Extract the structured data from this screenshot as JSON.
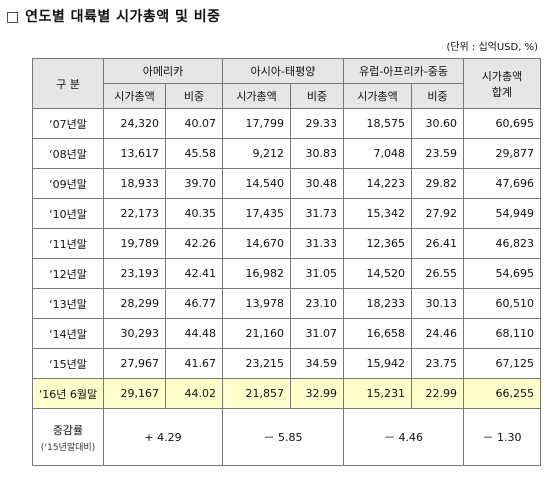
{
  "header": {
    "title": "□ 연도별 대륙별 시가총액 및 비중",
    "unit": "(단위 : 십억USD, %)"
  },
  "table": {
    "label_header": "구 분",
    "groups": [
      "아메리카",
      "아시아-태평양",
      "유럽-아프리카-중동"
    ],
    "total_header": [
      "시가총액",
      "합계"
    ],
    "subheaders": [
      "시가총액",
      "비중",
      "시가총액",
      "비중",
      "시가총액",
      "비중"
    ],
    "rows": [
      [
        "‘07년말",
        "24,320",
        "40.07",
        "17,799",
        "29.33",
        "18,575",
        "30.60",
        "60,695"
      ],
      [
        "‘08년말",
        "13,617",
        "45.58",
        "9,212",
        "30.83",
        "7,048",
        "23.59",
        "29,877"
      ],
      [
        "‘09년말",
        "18,933",
        "39.70",
        "14,540",
        "30.48",
        "14,223",
        "29.82",
        "47,696"
      ],
      [
        "‘10년말",
        "22,173",
        "40.35",
        "17,435",
        "31.73",
        "15,342",
        "27.92",
        "54,949"
      ],
      [
        "‘11년말",
        "19,789",
        "42.26",
        "14,670",
        "31.33",
        "12,365",
        "26.41",
        "46,823"
      ],
      [
        "‘12년말",
        "23,193",
        "42.41",
        "16,982",
        "31.05",
        "14,520",
        "26.55",
        "54,695"
      ],
      [
        "‘13년말",
        "28,299",
        "46.77",
        "13,978",
        "23.10",
        "18,233",
        "30.13",
        "60,510"
      ],
      [
        "‘14년말",
        "30,293",
        "44.48",
        "21,160",
        "31.07",
        "16,658",
        "24.46",
        "68,110"
      ],
      [
        "‘15년말",
        "27,967",
        "41.67",
        "23,215",
        "34.59",
        "15,942",
        "23.75",
        "67,125"
      ],
      [
        "‘16년 6월말",
        "29,167",
        "44.02",
        "21,857",
        "32.99",
        "15,231",
        "22.99",
        "66,255"
      ]
    ],
    "change_row": {
      "label": "증감률",
      "sublabel": "(‘15년말대비)",
      "values": [
        "+ 4.29",
        "－ 5.85",
        "－ 4.46",
        "－ 1.30"
      ]
    }
  }
}
